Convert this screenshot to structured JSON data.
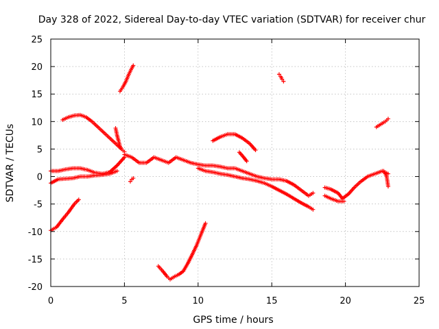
{
  "chart_data": {
    "type": "scatter",
    "title": "Day 328 of 2022, Sidereal Day-to-day VTEC variation (SDTVAR) for receiver chur",
    "xlabel": "GPS time / hours",
    "ylabel": "SDTVAR / TECUs",
    "xlim": [
      0,
      25
    ],
    "ylim": [
      -20,
      25
    ],
    "xticks": [
      "0",
      "5",
      "10",
      "15",
      "20",
      "25"
    ],
    "yticks": [
      "-20",
      "-15",
      "-10",
      "-5",
      "0",
      "5",
      "10",
      "15",
      "20",
      "25"
    ],
    "grid": true,
    "legend": "none",
    "marker": "+",
    "color": "#ff0000",
    "series": [
      {
        "name": "arc-upper-left",
        "x": [
          0.8,
          1.2,
          1.6,
          2.0,
          2.4,
          2.8,
          3.2,
          3.6,
          4.0,
          4.4,
          4.8,
          5.0
        ],
        "y": [
          10.3,
          10.8,
          11.1,
          11.2,
          10.8,
          10.0,
          9.0,
          8.0,
          7.0,
          6.0,
          5.0,
          4.5
        ]
      },
      {
        "name": "rise-to-20",
        "x": [
          4.7,
          4.9,
          5.1,
          5.3,
          5.5,
          5.6
        ],
        "y": [
          15.5,
          16.3,
          17.3,
          18.6,
          19.7,
          20.2
        ]
      },
      {
        "name": "band-upper-0-5",
        "x": [
          0.0,
          0.5,
          1.0,
          1.5,
          2.0,
          2.5,
          3.0,
          3.5,
          4.0,
          4.5,
          5.0
        ],
        "y": [
          1.0,
          1.0,
          1.3,
          1.5,
          1.5,
          1.2,
          0.7,
          0.5,
          0.8,
          2.0,
          3.5
        ]
      },
      {
        "name": "band-lower-0-5",
        "x": [
          0.0,
          0.5,
          1.0,
          1.5,
          2.0,
          2.5,
          3.0,
          3.5,
          4.0,
          4.5
        ],
        "y": [
          -1.2,
          -0.5,
          -0.4,
          -0.3,
          0.0,
          0.0,
          0.2,
          0.3,
          0.5,
          1.0
        ]
      },
      {
        "name": "main-band",
        "x": [
          5.0,
          5.5,
          6.0,
          6.5,
          7.0,
          7.5,
          8.0,
          8.5,
          9.0,
          9.5,
          10.0,
          10.5,
          11.0,
          11.5,
          12.0,
          12.5,
          13.0,
          13.5,
          14.0,
          14.5,
          15.0,
          15.5,
          16.0,
          16.5,
          17.0,
          17.5,
          17.8
        ],
        "y": [
          4.0,
          3.5,
          2.5,
          2.5,
          3.5,
          3.0,
          2.5,
          3.5,
          3.0,
          2.5,
          2.2,
          2.0,
          2.0,
          1.8,
          1.5,
          1.5,
          1.0,
          0.5,
          0.0,
          -0.3,
          -0.5,
          -0.5,
          -0.8,
          -1.5,
          -2.5,
          -3.5,
          -3.0
        ]
      },
      {
        "name": "main-band-lower",
        "x": [
          10.0,
          10.5,
          11.0,
          11.5,
          12.0,
          12.5,
          13.0,
          13.5,
          14.0,
          14.5,
          15.0,
          15.5,
          16.0,
          16.5,
          17.0,
          17.5,
          17.8
        ],
        "y": [
          1.5,
          1.0,
          0.8,
          0.5,
          0.3,
          0.0,
          -0.3,
          -0.5,
          -0.8,
          -1.2,
          -1.8,
          -2.5,
          -3.2,
          -4.0,
          -4.8,
          -5.5,
          -6.0
        ]
      },
      {
        "name": "spike-4-5",
        "x": [
          4.4,
          4.5,
          4.6,
          4.7,
          4.8
        ],
        "y": [
          8.8,
          7.5,
          6.5,
          5.5,
          5.0
        ]
      },
      {
        "name": "small-drop-5-5",
        "x": [
          5.4,
          5.5,
          5.6
        ],
        "y": [
          -0.9,
          -0.5,
          -0.3
        ]
      },
      {
        "name": "rise-lower-left",
        "x": [
          0.0,
          0.4,
          0.8,
          1.2,
          1.6,
          1.9
        ],
        "y": [
          -9.8,
          -9.2,
          -7.8,
          -6.5,
          -5.0,
          -4.2
        ]
      },
      {
        "name": "v-shape-bottom",
        "x": [
          7.3,
          7.6,
          7.9,
          8.1,
          8.4,
          8.7,
          9.0,
          9.3,
          9.6,
          9.9,
          10.2,
          10.5
        ],
        "y": [
          -16.3,
          -17.2,
          -18.2,
          -18.7,
          -18.2,
          -17.8,
          -17.2,
          -15.8,
          -14.2,
          -12.5,
          -10.5,
          -8.5
        ]
      },
      {
        "name": "arc-middle",
        "x": [
          11.0,
          11.5,
          12.0,
          12.5,
          13.0,
          13.5,
          13.9
        ],
        "y": [
          6.5,
          7.2,
          7.7,
          7.7,
          7.0,
          6.0,
          4.8
        ]
      },
      {
        "name": "short-mid",
        "x": [
          12.8,
          13.0,
          13.3
        ],
        "y": [
          4.4,
          3.8,
          2.8
        ]
      },
      {
        "name": "small-15-8",
        "x": [
          15.5,
          15.6,
          15.7,
          15.8
        ],
        "y": [
          18.6,
          18.2,
          17.7,
          17.3
        ]
      },
      {
        "name": "arc-right",
        "x": [
          18.6,
          19.0,
          19.5,
          19.8,
          20.2,
          20.6,
          21.0,
          21.5,
          22.0,
          22.5,
          22.9
        ],
        "y": [
          -2.0,
          -2.3,
          -3.0,
          -4.0,
          -3.2,
          -2.0,
          -1.0,
          0.0,
          0.5,
          1.0,
          0.5
        ]
      },
      {
        "name": "arc-right-lower",
        "x": [
          18.6,
          19.0,
          19.5,
          19.9
        ],
        "y": [
          -3.5,
          -4.0,
          -4.5,
          -4.5
        ]
      },
      {
        "name": "right-spike",
        "x": [
          22.6,
          22.8,
          22.9
        ],
        "y": [
          1.0,
          0.0,
          -1.8
        ]
      },
      {
        "name": "upper-right",
        "x": [
          22.1,
          22.4,
          22.7,
          22.9
        ],
        "y": [
          9.0,
          9.5,
          10.0,
          10.5
        ]
      }
    ]
  }
}
